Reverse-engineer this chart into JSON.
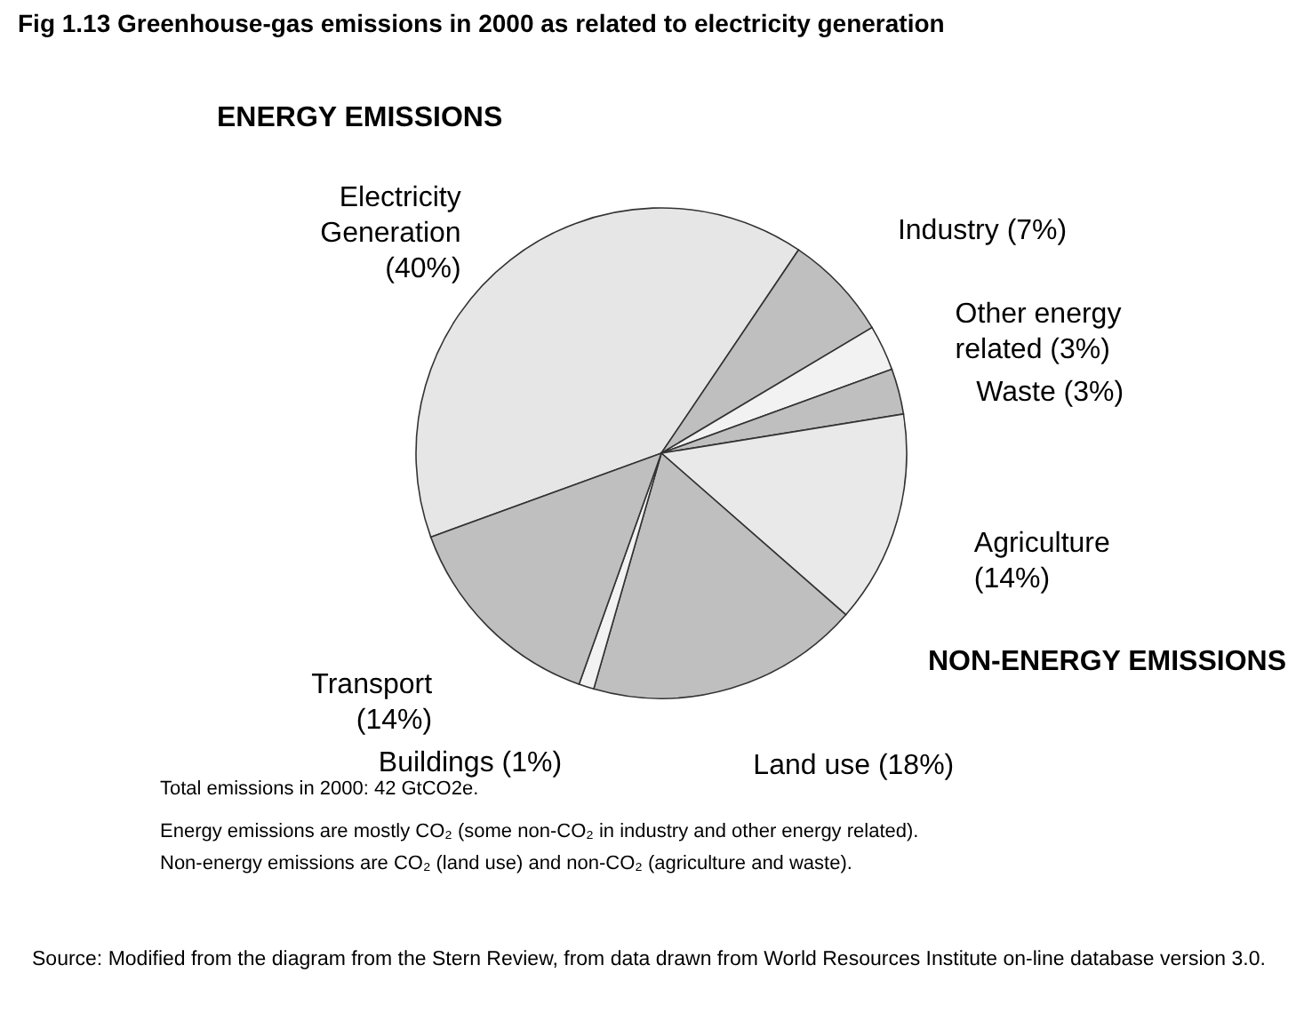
{
  "chart_data": {
    "type": "pie",
    "title": "Fig 1.13 Greenhouse-gas emissions in 2000 as related to electricity generation",
    "categories": [
      "Electricity Generation",
      "Industry",
      "Other energy related",
      "Waste",
      "Agriculture",
      "Land use",
      "Buildings",
      "Transport"
    ],
    "values": [
      40,
      7,
      3,
      3,
      14,
      18,
      1,
      14
    ],
    "value_labels": [
      "(40%)",
      "(7%)",
      "(3%)",
      "(3%)",
      "(14%)",
      "(18%)",
      "(1%)",
      "(14%)"
    ],
    "colors": [
      "#e6e6e6",
      "#bfbfbf",
      "#f2f2f2",
      "#bfbfbf",
      "#e9e9e9",
      "#bfbfbf",
      "#f2f2f2",
      "#bfbfbf"
    ],
    "annotations": [
      "ENERGY EMISSIONS",
      "NON-ENERGY EMISSIONS",
      "Total emissions in 2000: 42 GtCO2e.",
      "Energy emissions are mostly CO₂ (some non-CO₂ in industry and other energy related).",
      "Non-energy emissions are CO₂ (land use) and non-CO₂ (agriculture and waste).",
      "Source: Modified from the diagram from the Stern Review, from data drawn from World Resources Institute on-line database version 3.0."
    ]
  }
}
